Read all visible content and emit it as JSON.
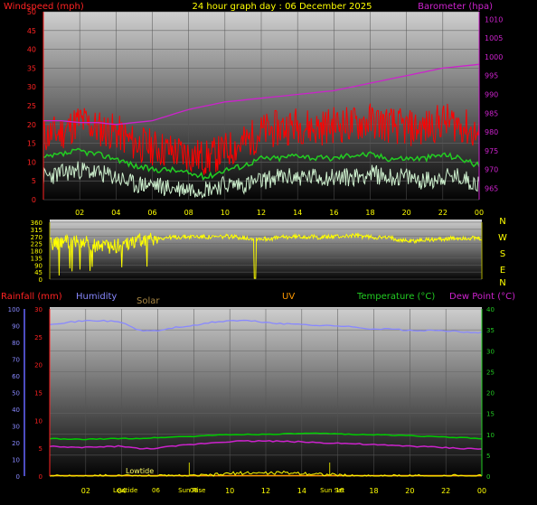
{
  "title": "24 hour graph day : 06 December 2025",
  "colors": {
    "background": "#000000",
    "wind_gust": "#ff0000",
    "wind_avg": "#22cc22",
    "wind_speed": "#cceecc",
    "barometer": "#cc22cc",
    "direction": "#ffff00",
    "humidity": "#8888ff",
    "temperature": "#00cc00",
    "dew_point": "#cc22cc",
    "rainfall": "#ff2222",
    "solar": "#ff9900",
    "uv": "#ffff00",
    "tide_line": "#cccc00"
  },
  "chart_data": [
    {
      "type": "line",
      "name": "wind-barometer",
      "left_axis_label": "Windspeed (mph)",
      "right_axis_label": "Barometer (hpa)",
      "x_ticks": [
        "02",
        "04",
        "06",
        "08",
        "10",
        "12",
        "14",
        "16",
        "18",
        "20",
        "22",
        "00"
      ],
      "x_hours": [
        2,
        4,
        6,
        8,
        10,
        12,
        14,
        16,
        18,
        20,
        22,
        24
      ],
      "left_ylim": [
        0,
        50
      ],
      "left_ticks": [
        0,
        5,
        10,
        15,
        20,
        25,
        30,
        35,
        40,
        45,
        50
      ],
      "right_ylim": [
        962,
        1012
      ],
      "right_ticks": [
        965,
        970,
        975,
        980,
        985,
        990,
        995,
        1000,
        1005,
        1010
      ],
      "hours": [
        0,
        1,
        2,
        3,
        4,
        5,
        6,
        7,
        8,
        9,
        10,
        11,
        12,
        13,
        14,
        15,
        16,
        17,
        18,
        19,
        20,
        21,
        22,
        23,
        24
      ],
      "series": [
        {
          "key": "gust",
          "values": [
            17,
            18,
            21,
            19,
            18,
            15,
            14,
            13,
            12,
            11,
            13,
            15,
            18,
            19,
            20,
            19,
            20,
            20,
            21,
            20,
            19,
            19,
            21,
            20,
            17
          ]
        },
        {
          "key": "avg",
          "values": [
            11,
            12,
            13,
            12,
            11,
            9,
            8,
            8,
            7,
            6,
            8,
            9,
            11,
            11,
            12,
            11,
            11,
            12,
            12,
            11,
            11,
            11,
            12,
            11,
            9
          ]
        },
        {
          "key": "speed",
          "values": [
            6,
            7,
            8,
            7,
            6,
            4,
            4,
            3,
            3,
            3,
            4,
            4,
            5,
            6,
            6,
            6,
            6,
            6,
            7,
            6,
            6,
            5,
            6,
            6,
            4
          ]
        },
        {
          "key": "barometer",
          "values": [
            983,
            983,
            982.5,
            982.5,
            982,
            982.5,
            983,
            984.5,
            986,
            987,
            988,
            988.5,
            989,
            989.5,
            990,
            990.5,
            991,
            992,
            993,
            994,
            995,
            996,
            997,
            997.5,
            998
          ]
        }
      ]
    },
    {
      "type": "line",
      "name": "wind-direction",
      "right_labels": [
        "N",
        "W",
        "S",
        "E",
        "N"
      ],
      "ylim": [
        0,
        360
      ],
      "ticks": [
        0,
        45,
        90,
        135,
        180,
        225,
        270,
        315,
        360
      ],
      "tick_labels": [
        "0",
        "45",
        "90",
        "135",
        "180",
        "225",
        "270",
        "315",
        "360"
      ],
      "hours": [
        0,
        1,
        2,
        3,
        4,
        5,
        6,
        7,
        8,
        9,
        10,
        11,
        12,
        13,
        14,
        15,
        16,
        17,
        18,
        19,
        20,
        21,
        22,
        23,
        24
      ],
      "values": [
        220,
        240,
        230,
        200,
        215,
        245,
        260,
        265,
        270,
        265,
        270,
        260,
        255,
        265,
        270,
        265,
        270,
        275,
        265,
        260,
        240,
        250,
        255,
        260,
        255
      ]
    },
    {
      "type": "line",
      "name": "weather",
      "legend": [
        "Rainfall (mm)",
        "Humidity",
        "Solar",
        "UV",
        "Temperature (°C)",
        "Dew Point (°C)"
      ],
      "far_left_ticks": [
        0,
        10,
        20,
        30,
        40,
        50,
        60,
        70,
        80,
        90,
        100
      ],
      "left_ylim": [
        0,
        30
      ],
      "left_ticks": [
        0,
        5,
        10,
        15,
        20,
        25,
        30
      ],
      "right_ylim": [
        0,
        40
      ],
      "right_ticks": [
        0,
        5,
        10,
        15,
        20,
        25,
        30,
        35,
        40
      ],
      "x_ticks": [
        "02",
        "04",
        "06",
        "08",
        "10",
        "12",
        "14",
        "16",
        "18",
        "20",
        "22",
        "00"
      ],
      "x_hours": [
        2,
        4,
        6,
        8,
        10,
        12,
        14,
        16,
        18,
        20,
        22,
        24
      ],
      "hours": [
        0,
        1,
        2,
        3,
        4,
        5,
        6,
        7,
        8,
        9,
        10,
        11,
        12,
        13,
        14,
        15,
        16,
        17,
        18,
        19,
        20,
        21,
        22,
        23,
        24
      ],
      "series": [
        {
          "key": "humidity",
          "values": [
            91,
            92,
            93,
            93,
            92,
            87,
            87,
            89,
            90,
            92,
            93,
            93,
            92,
            91,
            91,
            90,
            90,
            89,
            88,
            88,
            87,
            87,
            87,
            86,
            86
          ]
        },
        {
          "key": "temperature",
          "values": [
            9,
            8.8,
            8.8,
            8.9,
            9,
            9,
            9.2,
            9.4,
            9.5,
            9.8,
            9.9,
            10,
            10,
            10.1,
            10.2,
            10.2,
            10.1,
            10,
            9.9,
            9.8,
            9.7,
            9.5,
            9.3,
            9.2,
            9
          ]
        },
        {
          "key": "dew_point",
          "values": [
            7.2,
            6.8,
            6.9,
            7,
            7.2,
            6.5,
            6.7,
            7.2,
            7.6,
            8,
            8.3,
            8.4,
            8.4,
            8.3,
            8.2,
            8,
            7.9,
            7.7,
            7.5,
            7.3,
            7.2,
            7,
            6.8,
            6.6,
            6.5
          ]
        },
        {
          "key": "uv",
          "values": [
            0,
            0,
            0,
            0,
            0,
            0,
            0,
            0,
            0,
            0.2,
            0.6,
            0.8,
            0.7,
            0.8,
            0.7,
            0.5,
            0.2,
            0,
            0,
            0,
            0,
            0,
            0,
            0,
            0
          ]
        }
      ],
      "events": [
        {
          "label": "Lowtide",
          "hour": 5.0,
          "row": "upper"
        },
        {
          "label": "Lowtide",
          "hour": 4.2,
          "row": "lower"
        },
        {
          "label": "06",
          "hour": 5.9,
          "row": "lower-num"
        },
        {
          "label": "Sun Rise",
          "hour": 7.9,
          "row": "lower"
        },
        {
          "label": "08",
          "hour": 8.0,
          "row": "lower-num"
        },
        {
          "label": "Sun Set",
          "hour": 15.7,
          "row": "lower"
        },
        {
          "label": "16",
          "hour": 16.1,
          "row": "lower-num"
        }
      ],
      "event_lines_hours": [
        7.75,
        15.55
      ]
    }
  ]
}
